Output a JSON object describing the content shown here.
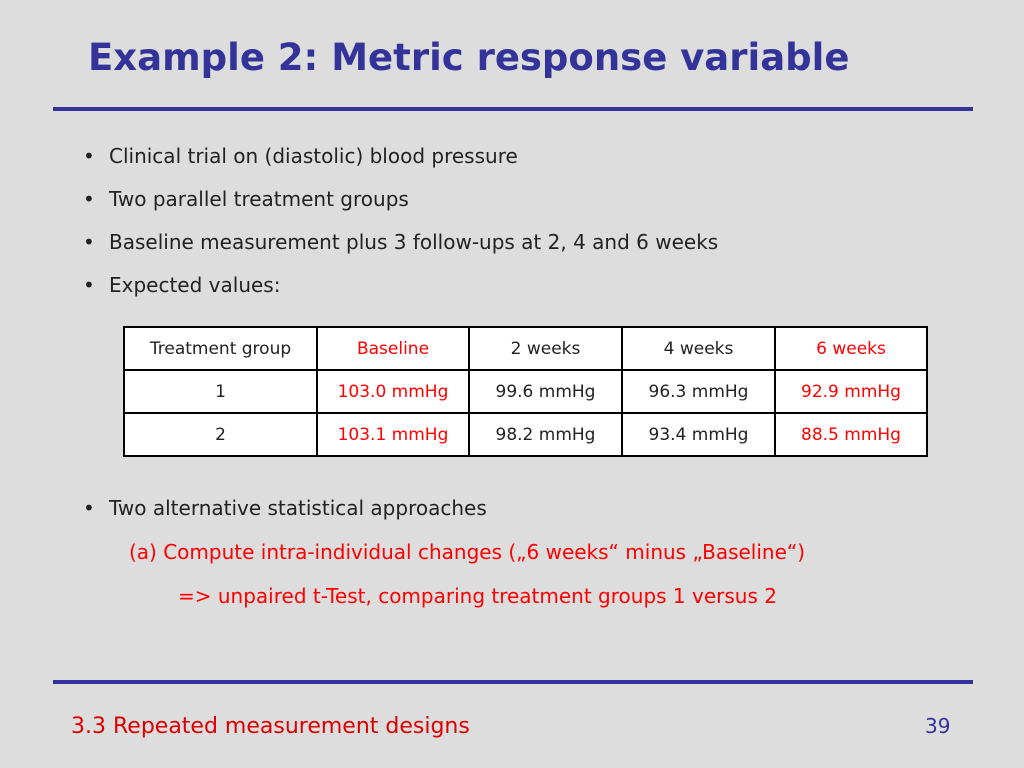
{
  "title": "Example 2: Metric response variable",
  "bullets_top": [
    "Clinical trial on (diastolic) blood pressure",
    "Two parallel treatment groups",
    "Baseline measurement plus 3 follow-ups at 2, 4 and 6 weeks",
    "Expected values:"
  ],
  "bullet_symbol": "•",
  "table": {
    "headers": [
      "Treatment group",
      "Baseline",
      "2 weeks",
      "4 weeks",
      "6 weeks"
    ],
    "rows": [
      [
        "1",
        "103.0 mmHg",
        "99.6 mmHg",
        "96.3 mmHg",
        "92.9 mmHg"
      ],
      [
        "2",
        "103.1 mmHg",
        "98.2 mmHg",
        "93.4 mmHg",
        "88.5 mmHg"
      ]
    ],
    "highlight_color": "#ff0000"
  },
  "bullets_bottom": [
    "Two alternative statistical approaches"
  ],
  "approach_a": "(a) Compute intra-individual changes („6 weeks“ minus „Baseline“)",
  "approach_a_result": "=> unpaired t-Test, comparing treatment groups 1 versus 2",
  "footer": "3.3 Repeated measurement designs",
  "page_number": "39",
  "colors": {
    "title": "#333399",
    "rule": "#333399",
    "emphasis": "#ff0000",
    "background": "#dddddd"
  }
}
